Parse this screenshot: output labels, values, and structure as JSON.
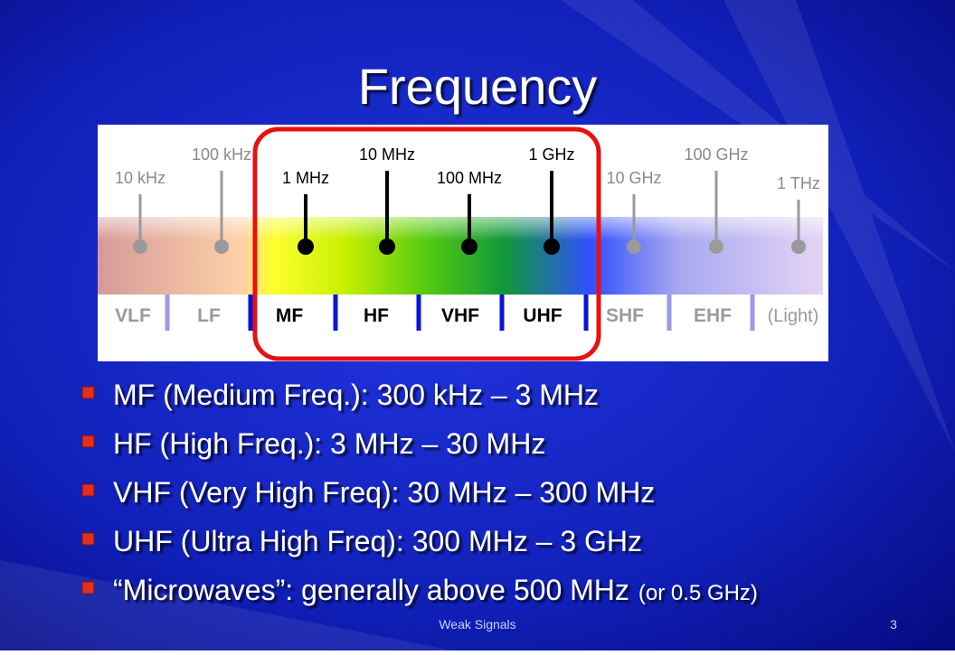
{
  "title": "Frequency",
  "diagram": {
    "frequencies": [
      "10 kHz",
      "100 kHz",
      "1 MHz",
      "10 MHz",
      "100 MHz",
      "1 GHz",
      "10 GHz",
      "100 GHz",
      "1 THz"
    ],
    "bands": [
      "VLF",
      "LF",
      "MF",
      "HF",
      "VHF",
      "UHF",
      "SHF",
      "EHF",
      "(Light)"
    ]
  },
  "bullets": [
    {
      "text": "MF (Medium Freq.): 300 kHz – 3 MHz"
    },
    {
      "text": "HF (High Freq.): 3 MHz – 30 MHz"
    },
    {
      "text": "VHF (Very High Freq): 30 MHz – 300 MHz"
    },
    {
      "text": "UHF (Ultra High Freq): 300 MHz – 3 GHz"
    },
    {
      "text": "“Microwaves”: generally above 500 MHz",
      "note": "(or 0.5 GHz)"
    }
  ],
  "footer": {
    "center": "Weak Signals",
    "page": "3"
  }
}
